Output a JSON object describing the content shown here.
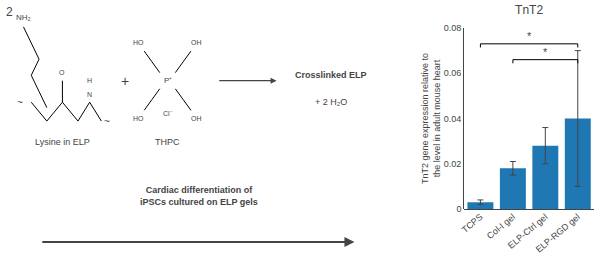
{
  "chart_data": {
    "type": "bar",
    "title": "TnT2",
    "categories": [
      "TCPS",
      "Col-I gel",
      "ELP-Ctrl gel",
      "ELP-RGD gel"
    ],
    "values": [
      0.003,
      0.018,
      0.028,
      0.04
    ],
    "errors": [
      0.001,
      0.003,
      0.008,
      0.03
    ],
    "ylabel": "TnT2 gene expression relative to\nthe level in adult mouse heart",
    "ylim": [
      0,
      0.08
    ],
    "yticks": [
      0,
      0.02,
      0.04,
      0.06,
      0.08
    ],
    "grid": false,
    "significance": [
      {
        "from": "TCPS",
        "to": "ELP-RGD gel",
        "y": 0.073,
        "label": "*"
      },
      {
        "from": "Col-I gel",
        "to": "ELP-RGD gel",
        "y": 0.066,
        "label": "*"
      }
    ],
    "annotations": [
      "2",
      "Lysine in ELP",
      "THPC",
      "+",
      "Crosslinked ELP",
      "+ 2 H₂O",
      "Cardiac differentiation of\niPSCs cultured on ELP gels",
      "NH₂",
      "O",
      "H",
      "N",
      "~",
      "~",
      "P⁺",
      "HO",
      "HO",
      "OH",
      "OH",
      "Cl⁻"
    ]
  }
}
